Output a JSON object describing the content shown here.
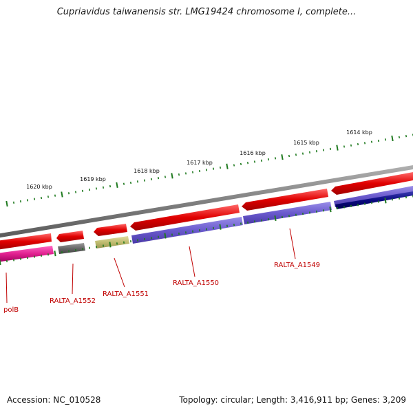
{
  "title": "Cupriavidus taiwanensis str. LMG19424 chromosome I, complete...",
  "footer": {
    "accession": "Accession: NC_010528",
    "stats": "Topology: circular; Length: 3,416,911 bp; Genes: 3,209"
  },
  "colors": {
    "backbone": "#8a8a8a",
    "forward_gene": "#e00000",
    "reverse_gene": "#6a5acd",
    "ticks": "#1f7a1f",
    "label": "#c00000"
  },
  "kbp_ticks": [
    "1620 kbp",
    "1619 kbp",
    "1618 kbp",
    "1617 kbp",
    "1616 kbp",
    "1615 kbp",
    "1614 kbp"
  ],
  "gene_labels": [
    "polB",
    "RALTA_A1552",
    "RALTA_A1551",
    "RALTA_A1550",
    "RALTA_A1549"
  ]
}
